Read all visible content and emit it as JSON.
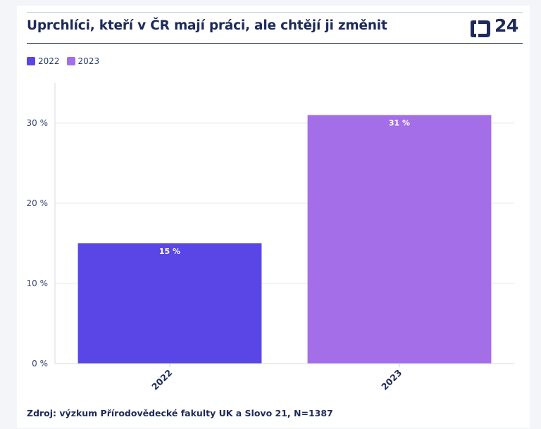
{
  "header": {
    "title": "Uprchlíci, kteří v ČR mají práci, ale chtějí ji změnit",
    "logo_text": "24",
    "logo_icon": "ct24-logo-icon"
  },
  "legend": [
    {
      "label": "2022",
      "color": "#5a45e6"
    },
    {
      "label": "2023",
      "color": "#a46ee8"
    }
  ],
  "chart_data": {
    "type": "bar",
    "categories": [
      "2022",
      "2023"
    ],
    "values": [
      15,
      31
    ],
    "data_labels": [
      "15 %",
      "31 %"
    ],
    "colors": [
      "#5a45e6",
      "#a46ee8"
    ],
    "ylim": [
      0,
      35
    ],
    "yticks": [
      0,
      10,
      20,
      30
    ],
    "ytick_labels": [
      "0 %",
      "10 %",
      "20 %",
      "30 %"
    ],
    "grid": true,
    "legend_position": "top-left"
  },
  "footer": {
    "source": "Zdroj: výzkum Přírodovědecké fakulty UK a Slovo 21, N=1387"
  }
}
